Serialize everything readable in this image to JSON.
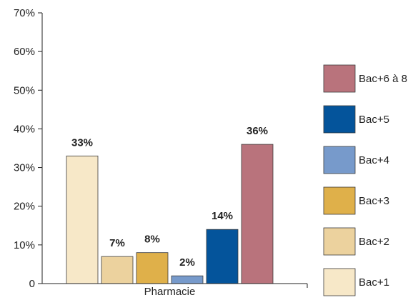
{
  "chart_data": {
    "type": "bar",
    "categories": [
      "Pharmacie"
    ],
    "series": [
      {
        "name": "Bac+1",
        "values": [
          33
        ],
        "color": "#f7e8c8"
      },
      {
        "name": "Bac+2",
        "values": [
          7
        ],
        "color": "#ecd29e"
      },
      {
        "name": "Bac+3",
        "values": [
          8
        ],
        "color": "#dfb04a"
      },
      {
        "name": "Bac+4",
        "values": [
          2
        ],
        "color": "#779acb"
      },
      {
        "name": "Bac+5",
        "values": [
          14
        ],
        "color": "#04549b"
      },
      {
        "name": "Bac+6 à 8",
        "values": [
          36
        ],
        "color": "#b9737c"
      }
    ],
    "data_labels": [
      "33%",
      "7%",
      "8%",
      "2%",
      "14%",
      "36%"
    ],
    "y_ticks": [
      "0",
      "10%",
      "20%",
      "30%",
      "40%",
      "50%",
      "60%",
      "70%"
    ],
    "ylim": [
      0,
      70
    ],
    "legend_order": [
      "Bac+6 à 8",
      "Bac+5",
      "Bac+4",
      "Bac+3",
      "Bac+2",
      "Bac+1"
    ],
    "legend_placement": "right",
    "grid": false
  }
}
